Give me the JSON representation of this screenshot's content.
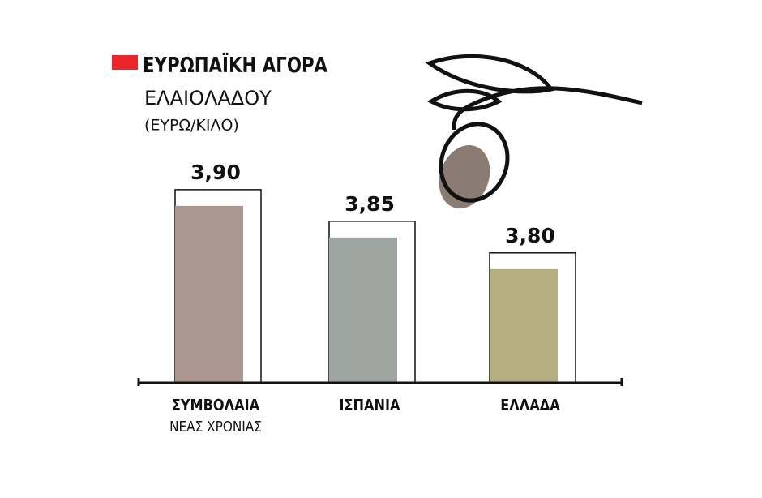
{
  "chart_data": {
    "type": "bar",
    "title": "ΕΥΡΩΠΑΪΚΗ ΑΓΟΡΑ",
    "subtitle": "ΕΛΑΙΟΛΑΔΟΥ",
    "unit": "(ΕΥΡΩ/ΚΙΛΟ)",
    "title_marker_color": "#e8262b",
    "categories": [
      "ΣΥΜΒΟΛΑΙΑ",
      "ΙΣΠΑΝΙΑ",
      "ΕΛΛΑΔΑ"
    ],
    "category_sublabels": [
      "ΝΕΑΣ ΧΡΟΝΙΑΣ",
      null,
      null
    ],
    "values": [
      3.9,
      3.85,
      3.8
    ],
    "value_labels": [
      "3,90",
      "3,85",
      "3,80"
    ],
    "colors": [
      "#a99790",
      "#9fa5a0",
      "#b5ae80"
    ],
    "ylim": [
      3.62,
      4.0
    ]
  }
}
